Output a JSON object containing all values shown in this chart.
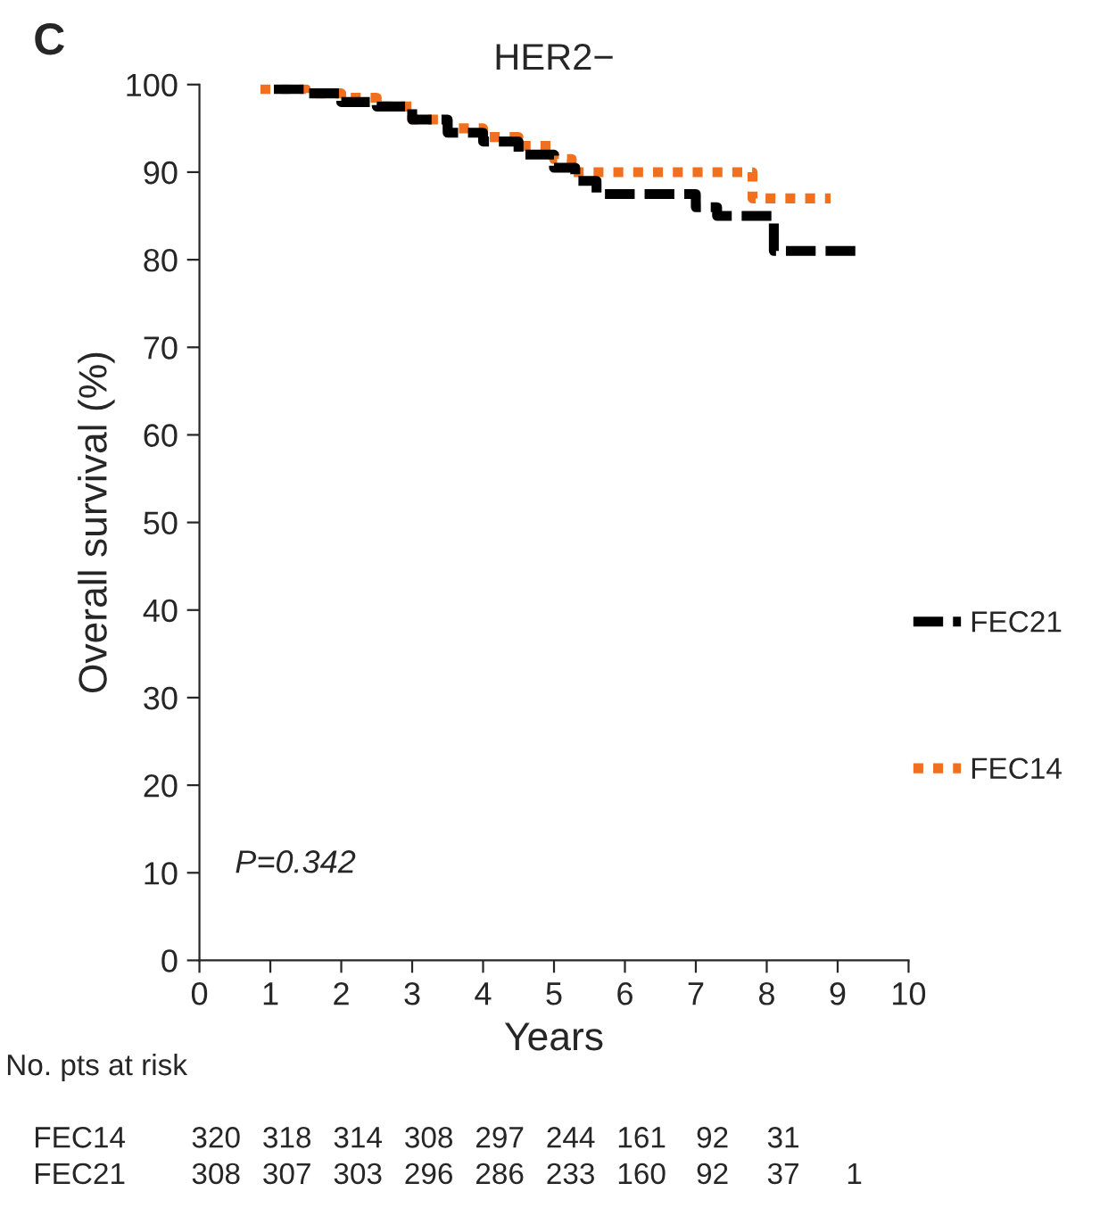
{
  "chart_data": {
    "type": "step",
    "title": "HER2−",
    "xlabel": "Years",
    "ylabel": "Overall survival (%)",
    "xlim": [
      0,
      10
    ],
    "xticks": [
      0,
      1,
      2,
      3,
      4,
      5,
      6,
      7,
      8,
      9,
      10
    ],
    "ylim": [
      0,
      100
    ],
    "yticks": [
      0,
      10,
      20,
      30,
      40,
      50,
      60,
      70,
      80,
      90,
      100
    ],
    "grid": false,
    "legend": "right",
    "series": [
      {
        "name": "FEC21",
        "color": "#000000",
        "line_style": "dashed",
        "x": [
          1.05,
          1.5,
          2,
          2.5,
          3,
          3.5,
          4,
          4.5,
          5,
          5.3,
          5.6,
          6.1,
          7.0,
          7.3,
          7.8,
          8.1,
          9.3
        ],
        "values": [
          99.5,
          99,
          98,
          97.5,
          96,
          94.5,
          93.5,
          92,
          90.5,
          89,
          87.5,
          87.5,
          86,
          85,
          85,
          81,
          81
        ]
      },
      {
        "name": "FEC14",
        "color": "#f07020",
        "line_style": "dotted",
        "x": [
          0.86,
          1.5,
          2,
          2.5,
          3,
          3.5,
          4,
          4.5,
          5,
          5.25,
          7.8,
          8.9
        ],
        "values": [
          99.5,
          99,
          98.5,
          97.5,
          96,
          95,
          94,
          93,
          91.5,
          90,
          87,
          87
        ]
      }
    ],
    "annotations": [
      "C",
      "P=0.342",
      "No. pts at risk",
      "FEC14 320 318 314 308 297 244 161 92 31",
      "FEC21 308 307 303 296 286 233 160 92 37 1"
    ]
  }
}
